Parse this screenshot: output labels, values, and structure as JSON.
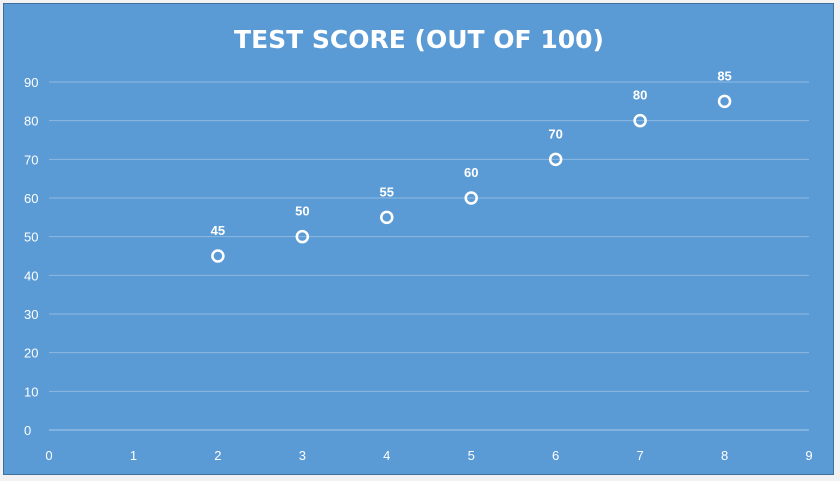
{
  "chart_data": {
    "type": "scatter",
    "title": "TEST SCORE (OUT OF 100)",
    "xlabel": "",
    "ylabel": "",
    "xlim": [
      0,
      9
    ],
    "ylim": [
      0,
      90
    ],
    "x_ticks": [
      "0",
      "1",
      "2",
      "3",
      "4",
      "5",
      "6",
      "7",
      "8",
      "9"
    ],
    "y_ticks": [
      "0",
      "10",
      "20",
      "30",
      "40",
      "50",
      "60",
      "70",
      "80",
      "90"
    ],
    "grid": true,
    "legend": "none",
    "series": [
      {
        "points": [
          {
            "x": 2,
            "y": 45
          },
          {
            "x": 3,
            "y": 50
          },
          {
            "x": 4,
            "y": 55
          },
          {
            "x": 5,
            "y": 60
          },
          {
            "x": 6,
            "y": 70
          },
          {
            "x": 7,
            "y": 80
          },
          {
            "x": 8,
            "y": 85
          }
        ],
        "labels": [
          "45",
          "50",
          "55",
          "60",
          "70",
          "80",
          "85"
        ]
      }
    ],
    "colors": {
      "background": "#5b9bd5",
      "gridline": "#8cb9e3",
      "marker": "#ffffff",
      "text": "#ffffff"
    }
  }
}
